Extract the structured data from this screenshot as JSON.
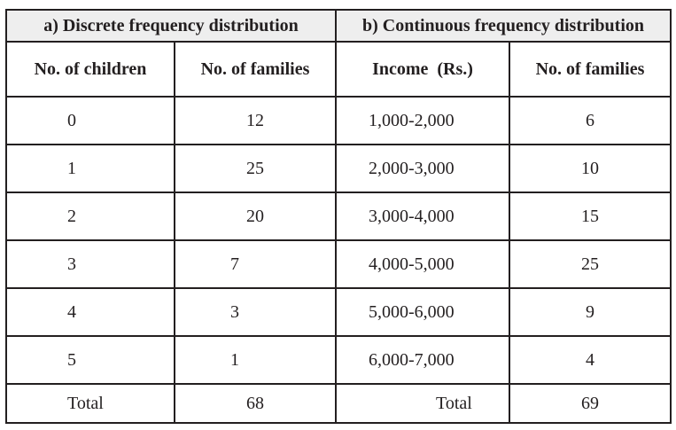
{
  "table": {
    "section_a_title": "a) Discrete frequency distribution",
    "section_b_title": "b) Continuous frequency distribution",
    "columns": [
      "No. of children",
      "No. of families",
      "Income  (Rs.)",
      "No. of families"
    ],
    "rows": [
      [
        "0",
        "12",
        "1,000-2,000",
        "6"
      ],
      [
        "1",
        "25",
        "2,000-3,000",
        "10"
      ],
      [
        "2",
        "20",
        "3,000-4,000",
        "15"
      ],
      [
        "3",
        "7",
        "4,000-5,000",
        "25"
      ],
      [
        "4",
        "3",
        "5,000-6,000",
        "9"
      ],
      [
        "5",
        "1",
        "6,000-7,000",
        "4"
      ]
    ],
    "total_row": [
      "Total",
      "68",
      "Total",
      "69"
    ]
  }
}
